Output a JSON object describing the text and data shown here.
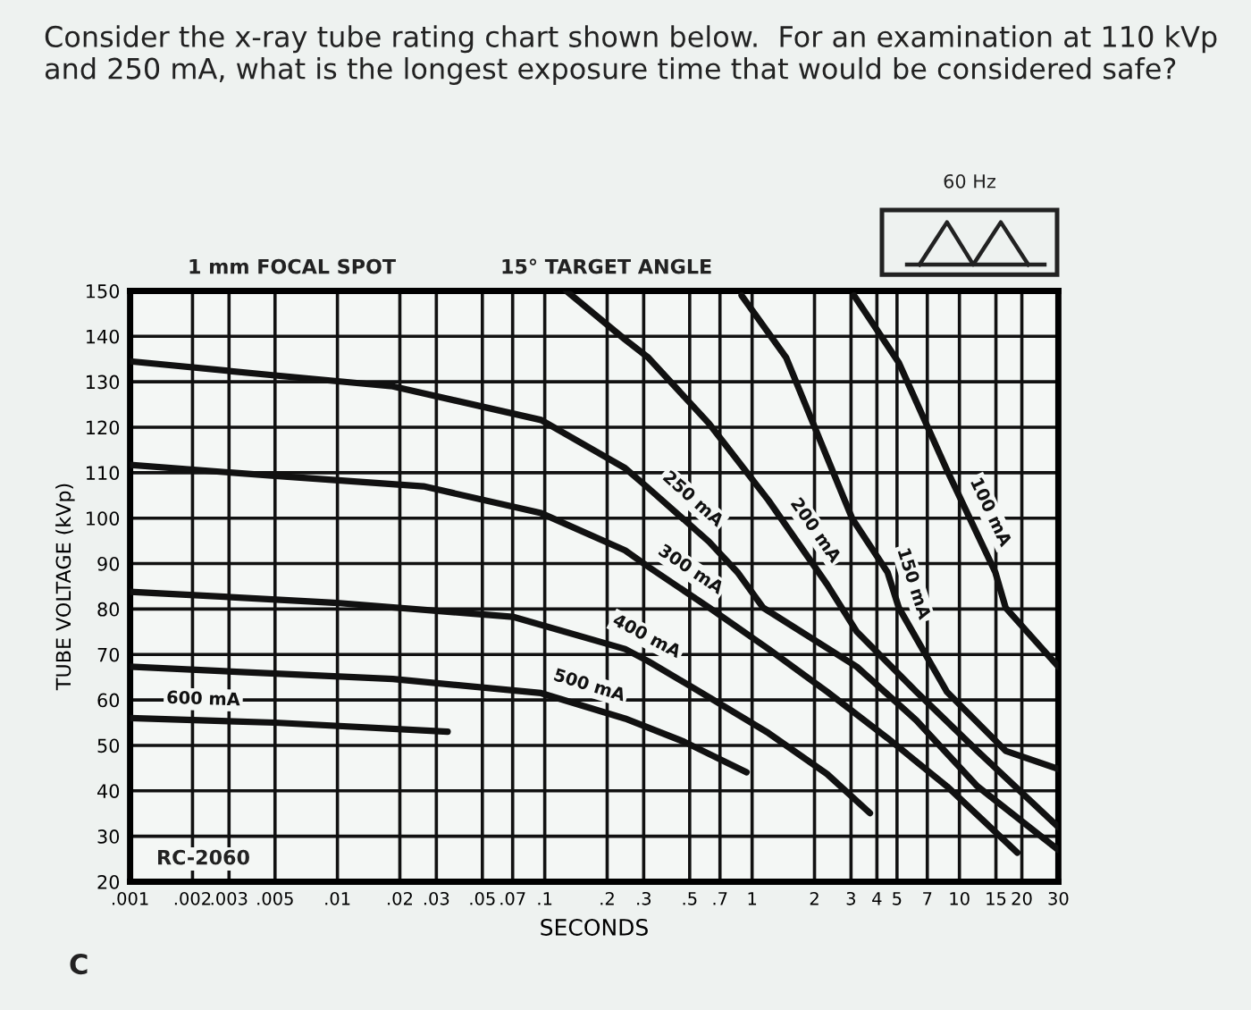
{
  "chart_data": {
    "type": "line",
    "title": "Consider the x-ray tube rating chart shown below.  For an examination at 110 kVp and 250 mA, what is the longest exposure time that would be considered safe?",
    "xlabel": "SECONDS",
    "ylabel": "TUBE VOLTAGE (kVp)",
    "annotations": [
      "1 mm FOCAL SPOT",
      "15° TARGET ANGLE",
      "60 Hz",
      "RC-2060",
      "C"
    ],
    "log": "x",
    "xlim": [
      0.001,
      30
    ],
    "ylim": [
      20,
      150
    ],
    "xticks": [
      {
        "value": 0.001,
        "label": ".001"
      },
      {
        "value": 0.002,
        "label": ".002"
      },
      {
        "value": 0.003,
        "label": ".003"
      },
      {
        "value": 0.005,
        "label": ".005"
      },
      {
        "value": 0.01,
        "label": ".01"
      },
      {
        "value": 0.02,
        "label": ".02"
      },
      {
        "value": 0.03,
        "label": ".03"
      },
      {
        "value": 0.05,
        "label": ".05"
      },
      {
        "value": 0.07,
        "label": ".07"
      },
      {
        "value": 0.1,
        "label": ".1"
      },
      {
        "value": 0.2,
        "label": ".2"
      },
      {
        "value": 0.3,
        "label": ".3"
      },
      {
        "value": 0.5,
        "label": ".5"
      },
      {
        "value": 0.7,
        "label": ".7"
      },
      1,
      2,
      3,
      4,
      5,
      7,
      10,
      15,
      20,
      30
    ],
    "yticks": [
      20,
      30,
      40,
      50,
      60,
      70,
      80,
      90,
      100,
      110,
      120,
      130,
      140,
      150
    ],
    "grid": true,
    "marker": "none",
    "line_style": "solid",
    "series": [
      {
        "name": "250 mA",
        "color": "#111111",
        "x": [
          0.001,
          0.005,
          0.0185,
          0.096,
          0.244,
          0.316,
          0.62,
          0.85,
          1.13,
          3.2,
          6.2,
          12.2,
          30
        ],
        "values": [
          134.5,
          131.4,
          129,
          121.6,
          111,
          106.6,
          94.8,
          88.1,
          80.3,
          67.3,
          55.5,
          41,
          27
        ]
      },
      {
        "name": "300 mA",
        "color": "#111111",
        "x": [
          0.001,
          0.005,
          0.026,
          0.096,
          0.244,
          0.316,
          0.62,
          1.2,
          2.3,
          4.5,
          8.7,
          19
        ],
        "values": [
          111.7,
          109.3,
          107,
          101.1,
          92.9,
          89.3,
          80.3,
          71.2,
          61.8,
          51.6,
          41,
          26.4
        ]
      },
      {
        "name": "400 mA",
        "color": "#111111",
        "x": [
          0.001,
          0.0096,
          0.07,
          0.244,
          0.316,
          0.62,
          1.2,
          2.3,
          3.7
        ],
        "values": [
          83.8,
          81.4,
          78.3,
          71.2,
          68.5,
          60.6,
          52.7,
          43.7,
          35.1
        ]
      },
      {
        "name": "500 mA",
        "color": "#111111",
        "x": [
          0.001,
          0.0185,
          0.096,
          0.244,
          0.47,
          0.94
        ],
        "values": [
          67.3,
          64.6,
          61.5,
          55.9,
          50.8,
          44.1
        ]
      },
      {
        "name": "600 mA",
        "color": "#111111",
        "x": [
          0.001,
          0.005,
          0.034
        ],
        "values": [
          56,
          55,
          53
        ]
      },
      {
        "name": "200 mA",
        "color": "#111111",
        "x": [
          0.127,
          0.244,
          0.316,
          0.62,
          1.2,
          2.3,
          3.2,
          6.2,
          12.2,
          30
        ],
        "values": [
          150,
          139.3,
          135.3,
          120.8,
          103.9,
          85.4,
          75,
          61.8,
          48.8,
          32
        ]
      },
      {
        "name": "150 mA",
        "color": "#111111",
        "x": [
          0.89,
          1.46,
          3.04,
          4.5,
          5.1,
          8.7,
          16.7,
          30
        ],
        "values": [
          149,
          135.3,
          99.9,
          88.1,
          80.3,
          61.8,
          48.8,
          44.8
        ]
      },
      {
        "name": "100 mA",
        "color": "#111111",
        "x": [
          3.1,
          5.1,
          8.7,
          14.9,
          16.7,
          30
        ],
        "values": [
          149,
          134.2,
          110.6,
          88.1,
          80.3,
          67.3
        ]
      }
    ]
  }
}
